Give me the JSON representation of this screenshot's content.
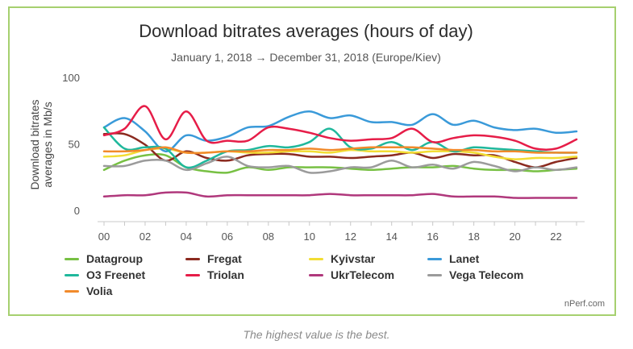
{
  "caption": "The highest value is the best.",
  "credit": "nPerf.com",
  "chart_data": {
    "type": "line",
    "title": "Download bitrates averages (hours of day)",
    "subtitle": "January 1, 2018 → December 31, 2018 (Europe/Kiev)",
    "ylabel": "Download bitrates averages in Mb/s",
    "xlabel": "",
    "x": [
      0,
      1,
      2,
      3,
      4,
      5,
      6,
      7,
      8,
      9,
      10,
      11,
      12,
      13,
      14,
      15,
      16,
      17,
      18,
      19,
      20,
      21,
      22,
      23
    ],
    "x_ticks": [
      "00",
      "02",
      "04",
      "06",
      "08",
      "10",
      "12",
      "14",
      "16",
      "18",
      "20",
      "22"
    ],
    "x_tick_values": [
      0,
      2,
      4,
      6,
      8,
      10,
      12,
      14,
      16,
      18,
      20,
      22
    ],
    "ylim": [
      0,
      100
    ],
    "y_ticks": [
      0,
      50,
      100
    ],
    "grid": false,
    "legend_position": "bottom",
    "series": [
      {
        "name": "Datagroup",
        "color": "#77c043",
        "values": [
          31,
          38,
          42,
          42,
          33,
          30,
          29,
          33,
          31,
          33,
          33,
          33,
          32,
          31,
          32,
          33,
          33,
          34,
          32,
          31,
          31,
          30,
          31,
          32
        ]
      },
      {
        "name": "Fregat",
        "color": "#8b2a1f",
        "values": [
          58,
          58,
          50,
          38,
          45,
          40,
          38,
          42,
          43,
          43,
          41,
          41,
          40,
          41,
          42,
          44,
          40,
          43,
          42,
          42,
          37,
          33,
          37,
          40
        ]
      },
      {
        "name": "Kyivstar",
        "color": "#f2dd33",
        "values": [
          41,
          42,
          46,
          47,
          44,
          44,
          45,
          44,
          44,
          45,
          45,
          44,
          46,
          45,
          45,
          44,
          45,
          45,
          44,
          41,
          39,
          40,
          40,
          41
        ]
      },
      {
        "name": "Lanet",
        "color": "#3a9ad9",
        "values": [
          63,
          70,
          60,
          45,
          57,
          53,
          56,
          63,
          64,
          71,
          75,
          70,
          72,
          67,
          67,
          65,
          73,
          65,
          68,
          63,
          61,
          62,
          59,
          60
        ]
      },
      {
        "name": "O3 Freenet",
        "color": "#1fb89c",
        "values": [
          63,
          47,
          48,
          47,
          33,
          38,
          45,
          46,
          49,
          48,
          52,
          62,
          48,
          47,
          52,
          46,
          52,
          45,
          48,
          47,
          46,
          45,
          44,
          44
        ]
      },
      {
        "name": "Triolan",
        "color": "#e61d48",
        "values": [
          57,
          62,
          79,
          54,
          75,
          53,
          53,
          53,
          63,
          62,
          59,
          55,
          53,
          54,
          55,
          62,
          52,
          55,
          57,
          56,
          53,
          47,
          47,
          54
        ]
      },
      {
        "name": "UkrTelecom",
        "color": "#b0387c",
        "values": [
          11,
          12,
          12,
          14,
          14,
          11,
          12,
          12,
          12,
          12,
          12,
          13,
          12,
          12,
          12,
          12,
          13,
          11,
          11,
          11,
          10,
          10,
          10,
          10
        ]
      },
      {
        "name": "Vega Telecom",
        "color": "#9b9b9b",
        "values": [
          34,
          34,
          38,
          38,
          31,
          36,
          41,
          34,
          33,
          34,
          29,
          30,
          33,
          33,
          38,
          33,
          35,
          32,
          37,
          34,
          30,
          33,
          31,
          33
        ]
      },
      {
        "name": "Volia",
        "color": "#f18a2b",
        "values": [
          45,
          45,
          46,
          48,
          44,
          44,
          45,
          45,
          46,
          46,
          47,
          46,
          47,
          48,
          48,
          48,
          47,
          46,
          46,
          45,
          45,
          44,
          44,
          44
        ]
      }
    ]
  }
}
